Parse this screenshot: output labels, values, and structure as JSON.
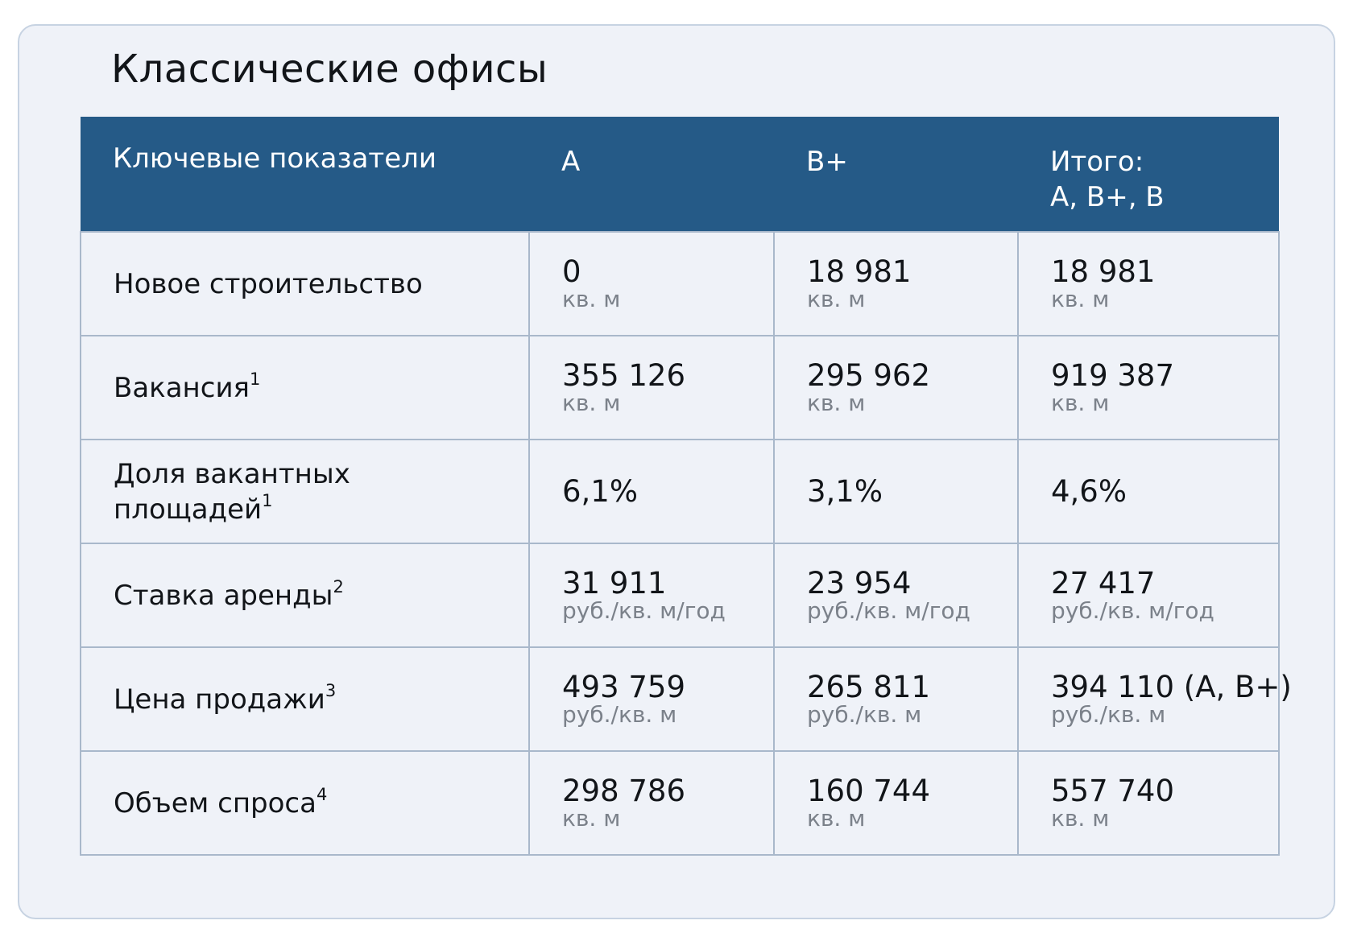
{
  "title": "Классические офисы",
  "header": {
    "col0": "Ключевые показатели",
    "col1": "A",
    "col2": "B+",
    "col3_line1": "Итого:",
    "col3_line2": "A, B+, B"
  },
  "rows": [
    {
      "label": "Новое строительство",
      "sup": "",
      "a": {
        "value": "0",
        "unit": "кв. м"
      },
      "bplus": {
        "value": "18 981",
        "unit": "кв. м"
      },
      "total": {
        "value": "18 981",
        "unit": "кв. м"
      }
    },
    {
      "label": "Вакансия",
      "sup": "1",
      "a": {
        "value": "355 126",
        "unit": "кв. м"
      },
      "bplus": {
        "value": "295 962",
        "unit": "кв. м"
      },
      "total": {
        "value": "919 387",
        "unit": "кв. м"
      }
    },
    {
      "label_line1": "Доля вакантных",
      "label_line2": "площадей",
      "sup": "1",
      "a": {
        "value": "6,1%"
      },
      "bplus": {
        "value": "3,1%"
      },
      "total": {
        "value": "4,6%"
      }
    },
    {
      "label": "Ставка аренды",
      "sup": "2",
      "a": {
        "value": "31 911",
        "unit": "руб./кв. м/год"
      },
      "bplus": {
        "value": "23 954",
        "unit": "руб./кв. м/год"
      },
      "total": {
        "value": "27 417",
        "unit": "руб./кв. м/год"
      }
    },
    {
      "label": "Цена продажи",
      "sup": "3",
      "a": {
        "value": "493 759",
        "unit": "руб./кв. м"
      },
      "bplus": {
        "value": "265 811",
        "unit": "руб./кв. м"
      },
      "total": {
        "value": "394 110 (A, B+)",
        "unit": "руб./кв. м"
      }
    },
    {
      "label": "Объем спроса",
      "sup": "4",
      "a": {
        "value": "298 786",
        "unit": "кв. м"
      },
      "bplus": {
        "value": "160 744",
        "unit": "кв. м"
      },
      "total": {
        "value": "557 740",
        "unit": "кв. м"
      }
    }
  ],
  "colors": {
    "header_bg": "#255a87",
    "card_bg": "#eff2f8",
    "border": "#a9b8cb",
    "unit_text": "#7b818a"
  }
}
